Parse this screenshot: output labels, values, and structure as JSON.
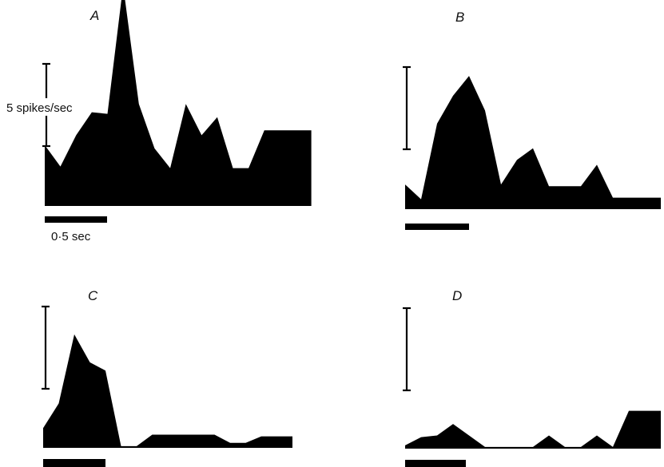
{
  "figure": {
    "scale_label": "5 spikes/sec",
    "time_label": "0·5 sec",
    "colors": {
      "fill": "#000000",
      "background": "#ffffff"
    }
  },
  "chart_data": [
    {
      "type": "area",
      "panel": "A",
      "x_unit": "sec",
      "y_unit": "spikes/sec",
      "x": [
        0,
        0.125,
        0.25,
        0.375,
        0.5,
        0.625,
        0.75,
        0.875,
        1.0,
        1.125,
        1.25,
        1.375,
        1.5,
        1.625,
        1.75,
        1.875,
        2.0,
        2.125
      ],
      "values": [
        3.7,
        2.4,
        4.3,
        5.7,
        5.6,
        13.4,
        6.2,
        3.5,
        2.3,
        6.2,
        4.3,
        5.4,
        2.3,
        2.3,
        4.6,
        4.6,
        4.6,
        4.6
      ],
      "stimulus_sec": 0.5
    },
    {
      "type": "area",
      "panel": "B",
      "x_unit": "sec",
      "y_unit": "spikes/sec",
      "x": [
        0,
        0.125,
        0.25,
        0.375,
        0.5,
        0.625,
        0.75,
        0.875,
        1.0,
        1.125,
        1.25,
        1.375,
        1.5,
        1.625,
        1.75,
        1.875,
        2.0
      ],
      "values": [
        1.5,
        0.6,
        5.2,
        6.9,
        8.1,
        6.0,
        1.5,
        3.0,
        3.7,
        1.4,
        1.4,
        1.4,
        2.7,
        0.7,
        0.7,
        0.7,
        0.7
      ],
      "stimulus_sec": 0.5
    },
    {
      "type": "area",
      "panel": "C",
      "x_unit": "sec",
      "y_unit": "spikes/sec",
      "x": [
        0,
        0.125,
        0.25,
        0.375,
        0.5,
        0.625,
        0.75,
        0.875,
        1.0,
        1.125,
        1.25,
        1.375,
        1.5,
        1.625,
        1.75,
        1.875,
        2.0
      ],
      "values": [
        1.2,
        2.7,
        6.9,
        5.2,
        4.7,
        0.1,
        0.1,
        0.8,
        0.8,
        0.8,
        0.8,
        0.8,
        0.3,
        0.3,
        0.7,
        0.7,
        0.7
      ],
      "stimulus_sec": 0.5
    },
    {
      "type": "area",
      "panel": "D",
      "x_unit": "sec",
      "y_unit": "spikes/sec",
      "x": [
        0,
        0.125,
        0.25,
        0.375,
        0.5,
        0.625,
        0.75,
        0.875,
        1.0,
        1.125,
        1.25,
        1.375,
        1.5,
        1.625,
        1.75,
        1.875,
        2.0
      ],
      "values": [
        0.2,
        0.7,
        0.8,
        1.5,
        0.8,
        0.1,
        0.1,
        0.1,
        0.1,
        0.8,
        0.1,
        0.1,
        0.8,
        0.1,
        2.3,
        2.3,
        2.3
      ],
      "stimulus_sec": 0.5
    }
  ]
}
